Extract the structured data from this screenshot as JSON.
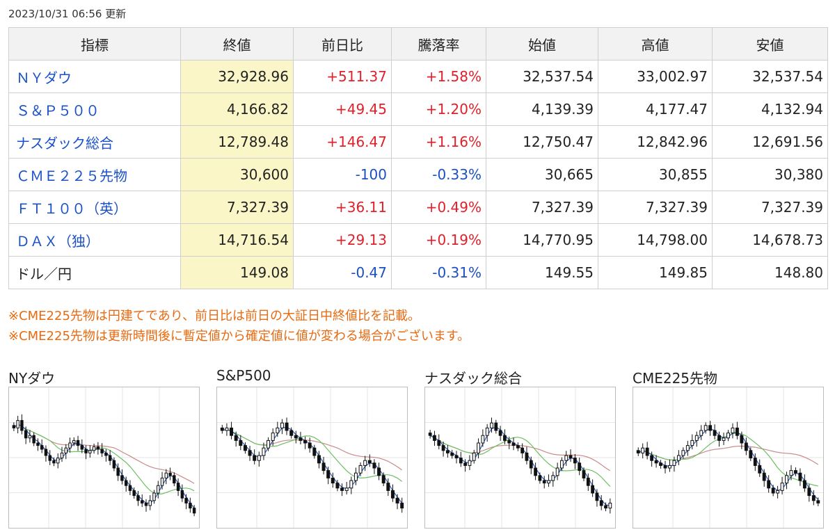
{
  "updated": "2023/10/31 06:56 更新",
  "table": {
    "headers": [
      "指標",
      "終値",
      "前日比",
      "騰落率",
      "始値",
      "高値",
      "安値"
    ],
    "rows": [
      {
        "name": "ＮＹダウ",
        "close": "32,928.96",
        "change": "+511.37",
        "rate": "+1.58%",
        "open": "32,537.54",
        "high": "33,002.97",
        "low": "32,537.54",
        "dir": "up",
        "link": true
      },
      {
        "name": "Ｓ＆Ｐ５００",
        "close": "4,166.82",
        "change": "+49.45",
        "rate": "+1.20%",
        "open": "4,139.39",
        "high": "4,177.47",
        "low": "4,132.94",
        "dir": "up",
        "link": true
      },
      {
        "name": "ナスダック総合",
        "close": "12,789.48",
        "change": "+146.47",
        "rate": "+1.16%",
        "open": "12,750.47",
        "high": "12,842.96",
        "low": "12,691.56",
        "dir": "up",
        "link": true
      },
      {
        "name": "ＣＭＥ２２５先物",
        "close": "30,600",
        "change": "-100",
        "rate": "-0.33%",
        "open": "30,665",
        "high": "30,855",
        "low": "30,380",
        "dir": "down",
        "link": true
      },
      {
        "name": "ＦＴ１００（英）",
        "close": "7,327.39",
        "change": "+36.11",
        "rate": "+0.49%",
        "open": "7,327.39",
        "high": "7,327.39",
        "low": "7,327.39",
        "dir": "up",
        "link": true
      },
      {
        "name": "ＤＡＸ（独）",
        "close": "14,716.54",
        "change": "+29.13",
        "rate": "+0.19%",
        "open": "14,770.95",
        "high": "14,798.00",
        "low": "14,678.73",
        "dir": "up",
        "link": true
      },
      {
        "name": "ドル／円",
        "close": "149.08",
        "change": "-0.47",
        "rate": "-0.31%",
        "open": "149.55",
        "high": "149.85",
        "low": "148.80",
        "dir": "down",
        "link": false
      }
    ]
  },
  "notes": [
    "※CME225先物は円建てであり、前日比は前日の大証日中終値比を記載。",
    "※CME225先物は更新時間後に暫定値から確定値に値が変わる場合がございます。"
  ],
  "charts": [
    {
      "title": "NYダウ",
      "closes": [
        0.72,
        0.78,
        0.7,
        0.64,
        0.66,
        0.6,
        0.58,
        0.55,
        0.5,
        0.46,
        0.44,
        0.48,
        0.52,
        0.56,
        0.6,
        0.62,
        0.58,
        0.55,
        0.52,
        0.54,
        0.57,
        0.55,
        0.52,
        0.5,
        0.46,
        0.4,
        0.34,
        0.3,
        0.26,
        0.22,
        0.18,
        0.14,
        0.12,
        0.1,
        0.14,
        0.2,
        0.26,
        0.32,
        0.36,
        0.34,
        0.28,
        0.22,
        0.16,
        0.12,
        0.08,
        0.04
      ]
    },
    {
      "title": "S&P500",
      "closes": [
        0.7,
        0.72,
        0.66,
        0.62,
        0.58,
        0.54,
        0.5,
        0.46,
        0.5,
        0.56,
        0.62,
        0.68,
        0.72,
        0.76,
        0.7,
        0.66,
        0.64,
        0.62,
        0.6,
        0.56,
        0.5,
        0.44,
        0.38,
        0.32,
        0.28,
        0.24,
        0.22,
        0.24,
        0.3,
        0.36,
        0.42,
        0.46,
        0.44,
        0.4,
        0.34,
        0.28,
        0.22,
        0.16,
        0.12,
        0.08
      ]
    },
    {
      "title": "ナスダック総合",
      "closes": [
        0.66,
        0.62,
        0.58,
        0.54,
        0.52,
        0.5,
        0.48,
        0.44,
        0.42,
        0.46,
        0.52,
        0.6,
        0.66,
        0.72,
        0.76,
        0.7,
        0.66,
        0.62,
        0.6,
        0.58,
        0.56,
        0.52,
        0.46,
        0.4,
        0.34,
        0.3,
        0.28,
        0.3,
        0.34,
        0.4,
        0.46,
        0.5,
        0.48,
        0.44,
        0.38,
        0.32,
        0.26,
        0.2,
        0.14,
        0.1,
        0.08,
        0.12
      ]
    },
    {
      "title": "CME225先物",
      "closes": [
        0.52,
        0.56,
        0.5,
        0.46,
        0.44,
        0.42,
        0.4,
        0.42,
        0.46,
        0.5,
        0.54,
        0.58,
        0.62,
        0.66,
        0.7,
        0.74,
        0.7,
        0.66,
        0.62,
        0.64,
        0.68,
        0.72,
        0.66,
        0.6,
        0.54,
        0.48,
        0.42,
        0.36,
        0.3,
        0.24,
        0.2,
        0.22,
        0.28,
        0.34,
        0.38,
        0.36,
        0.3,
        0.24,
        0.18,
        0.14,
        0.12
      ]
    }
  ],
  "colors": {
    "up": "#e0202a",
    "down": "#1b50c0",
    "link": "#1a50c8",
    "note": "#e86a10",
    "close_bg": "#fbf6c8",
    "ma_short": "#2a5ab8",
    "ma_mid": "#6fbf63",
    "ma_long": "#c98a8a"
  }
}
